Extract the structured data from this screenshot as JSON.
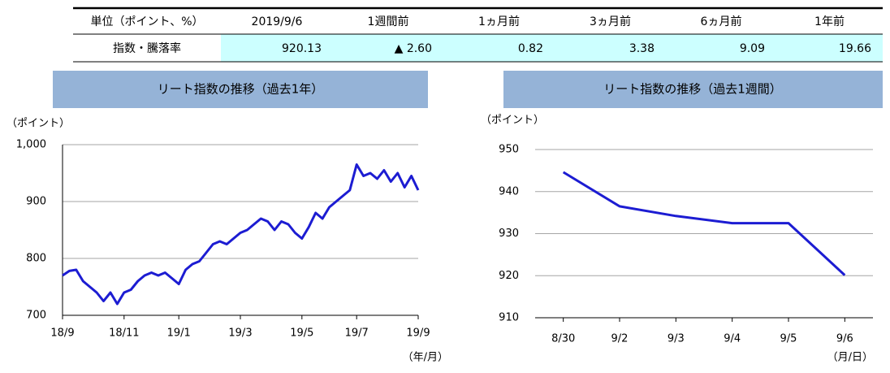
{
  "table": {
    "header": [
      "単位（ポイント、%）",
      "2019/9/6",
      "1週間前",
      "1ヵ月前",
      "3ヵ月前",
      "6ヵ月前",
      "1年前"
    ],
    "rows": [
      [
        "指数・騰落率",
        "920.13",
        "▲ 2.60",
        "0.82",
        "3.38",
        "9.09",
        "19.66"
      ]
    ]
  },
  "chart_data": [
    {
      "type": "line",
      "title": "リート指数の推移（過去1年）",
      "y_label": "（ポイント）",
      "x_label": "（年/月）",
      "categories": [
        "18/9",
        null,
        null,
        null,
        null,
        null,
        null,
        null,
        null,
        "18/11",
        null,
        null,
        null,
        null,
        null,
        null,
        null,
        "19/1",
        null,
        null,
        null,
        null,
        null,
        null,
        null,
        null,
        "19/3",
        null,
        null,
        null,
        null,
        null,
        null,
        null,
        null,
        "19/5",
        null,
        null,
        null,
        null,
        null,
        null,
        null,
        "19/7",
        null,
        null,
        null,
        null,
        null,
        null,
        null,
        null,
        "19/9"
      ],
      "values": [
        770,
        778,
        780,
        760,
        750,
        740,
        725,
        740,
        720,
        740,
        745,
        760,
        770,
        775,
        770,
        775,
        765,
        755,
        780,
        790,
        795,
        810,
        825,
        830,
        825,
        835,
        845,
        850,
        860,
        870,
        865,
        850,
        865,
        860,
        845,
        835,
        855,
        880,
        870,
        890,
        900,
        910,
        920,
        965,
        945,
        950,
        940,
        955,
        935,
        950,
        925,
        945,
        920
      ],
      "color": "#1c1cd2",
      "ylim": [
        700,
        1000
      ],
      "yticks": [
        700,
        800,
        900,
        {
          "value": 1000,
          "label": "1,000"
        }
      ],
      "grid": true
    },
    {
      "type": "line",
      "title": "リート指数の推移（過去1週間）",
      "y_label": "（ポイント）",
      "x_label": "（月/日）",
      "categories": [
        "8/30",
        "9/2",
        "9/3",
        "9/4",
        "9/5",
        "9/6"
      ],
      "values": [
        944.6,
        936.5,
        934.2,
        932.5,
        932.5,
        920.13
      ],
      "color": "#1c1cd2",
      "ylim": [
        910,
        950
      ],
      "yticks": [
        910,
        920,
        930,
        940,
        950
      ],
      "grid": true
    }
  ]
}
